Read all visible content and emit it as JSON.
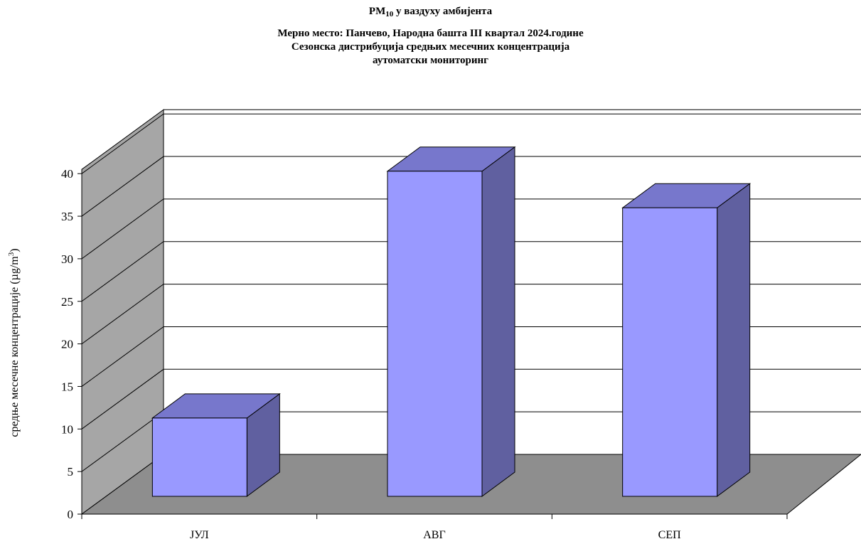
{
  "chart_data": {
    "type": "bar",
    "title_main": "PM",
    "title_sub": "10",
    "title_rest": " у ваздуху амбијента",
    "subtitle_1": "Мерно место: Панчево, Народна башта III квартал 2024.године",
    "subtitle_2": "Сезонска дистрибуција средњих месечних концентрација",
    "subtitle_3": "аутоматски мониторинг",
    "ylabel_text": "средње месечне концентрације  (µg/m",
    "ylabel_sup": "3",
    "ylabel_close": ")",
    "categories": [
      "ЈУЛ",
      "АВГ",
      "СЕП"
    ],
    "values": [
      9.2,
      38.2,
      33.9
    ],
    "ylim": [
      0,
      40
    ],
    "yticks": [
      0,
      5,
      10,
      15,
      20,
      25,
      30,
      35,
      40
    ],
    "grid": true,
    "legend": "none",
    "colors": {
      "bar_front": "#9999ff",
      "bar_top": "#7777cc",
      "bar_side": "#6060a0",
      "back_wall": "#ffffff",
      "side_wall": "#a6a6a6",
      "floor": "#8e8e8e"
    }
  }
}
